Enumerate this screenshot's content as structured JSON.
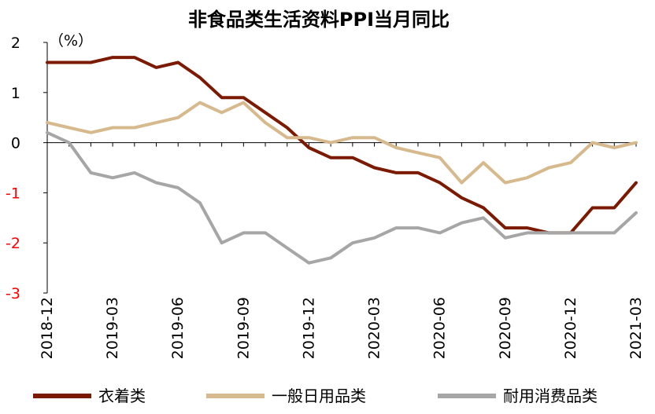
{
  "chart_data": {
    "type": "line",
    "title": "非食品类生活资料PPI当月同比",
    "unit_label": "（%）",
    "ylim": [
      -3,
      2
    ],
    "y_ticks": [
      2,
      1,
      0,
      -1,
      -2,
      -3
    ],
    "x": [
      "2018-12",
      "2019-01",
      "2019-02",
      "2019-03",
      "2019-04",
      "2019-05",
      "2019-06",
      "2019-07",
      "2019-08",
      "2019-09",
      "2019-10",
      "2019-11",
      "2019-12",
      "2020-01",
      "2020-02",
      "2020-03",
      "2020-04",
      "2020-05",
      "2020-06",
      "2020-07",
      "2020-08",
      "2020-09",
      "2020-10",
      "2020-11",
      "2020-12",
      "2021-01",
      "2021-02",
      "2021-03"
    ],
    "x_tick_labels": [
      "2018-12",
      "2019-03",
      "2019-06",
      "2019-09",
      "2019-12",
      "2020-03",
      "2020-06",
      "2020-09",
      "2020-12",
      "2021-03"
    ],
    "grid": false,
    "legend_position": "bottom",
    "negative_tick_color": "#ff0000",
    "series": [
      {
        "name": "衣着类",
        "color": "#7b1a00",
        "values": [
          1.6,
          1.6,
          1.6,
          1.7,
          1.7,
          1.5,
          1.6,
          1.3,
          0.9,
          0.9,
          0.6,
          0.3,
          -0.1,
          -0.3,
          -0.3,
          -0.5,
          -0.6,
          -0.6,
          -0.8,
          -1.1,
          -1.3,
          -1.7,
          -1.7,
          -1.8,
          -1.8,
          -1.3,
          -1.3,
          -0.8
        ]
      },
      {
        "name": "一般日用品类",
        "color": "#d6b98c",
        "values": [
          0.4,
          0.3,
          0.2,
          0.3,
          0.3,
          0.4,
          0.5,
          0.8,
          0.6,
          0.8,
          0.4,
          0.1,
          0.1,
          0.0,
          0.1,
          0.1,
          -0.1,
          -0.2,
          -0.3,
          -0.8,
          -0.4,
          -0.8,
          -0.7,
          -0.5,
          -0.4,
          0.0,
          -0.1,
          0.0
        ]
      },
      {
        "name": "耐用消费品类",
        "color": "#a6a6a6",
        "values": [
          0.2,
          0.0,
          -0.6,
          -0.7,
          -0.6,
          -0.8,
          -0.9,
          -1.2,
          -2.0,
          -1.8,
          -1.8,
          -2.1,
          -2.4,
          -2.3,
          -2.0,
          -1.9,
          -1.7,
          -1.7,
          -1.8,
          -1.6,
          -1.5,
          -1.9,
          -1.8,
          -1.8,
          -1.8,
          -1.8,
          -1.8,
          -1.4
        ]
      }
    ]
  }
}
